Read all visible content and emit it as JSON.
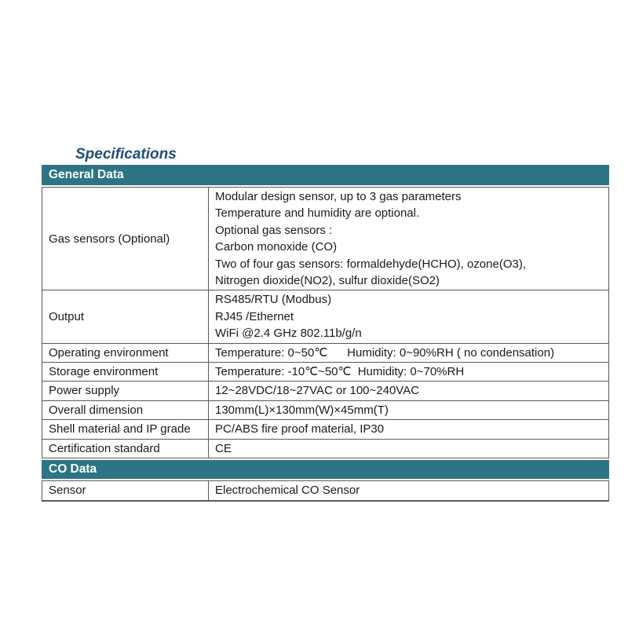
{
  "page": {
    "heading": "Specifications"
  },
  "colors": {
    "accent_teal": "#2d7585",
    "heading_blue": "#1f4e79",
    "border_gray": "#595959",
    "band_text": "#ffffff"
  },
  "table": {
    "sections": [
      {
        "header": "General Data",
        "rows": [
          {
            "label": "Gas sensors (Optional)",
            "value": "Modular design sensor, up to 3 gas parameters\nTemperature and humidity are optional.\nOptional gas sensors :\nCarbon monoxide (CO)\nTwo of four gas sensors: formaldehyde(HCHO), ozone(O3),\nNitrogen dioxide(NO2), sulfur dioxide(SO2)"
          },
          {
            "label": "Output",
            "value": "RS485/RTU (Modbus)\nRJ45 /Ethernet\nWiFi @2.4 GHz 802.11b/g/n"
          },
          {
            "label": "Operating environment",
            "value": "Temperature: 0~50℃      Humidity: 0~90%RH ( no condensation)"
          },
          {
            "label": "Storage environment",
            "value": "Temperature: -10℃~50℃  Humidity: 0~70%RH"
          },
          {
            "label": "Power supply",
            "value": "12~28VDC/18~27VAC or 100~240VAC"
          },
          {
            "label": "Overall dimension",
            "value": "130mm(L)×130mm(W)×45mm(T)"
          },
          {
            "label": "Shell material and IP grade",
            "value": "PC/ABS fire proof material, IP30"
          },
          {
            "label": "Certification standard",
            "value": "CE"
          }
        ]
      },
      {
        "header": "CO Data",
        "rows": [
          {
            "label": "Sensor",
            "value": "Electrochemical CO Sensor"
          }
        ]
      }
    ]
  }
}
